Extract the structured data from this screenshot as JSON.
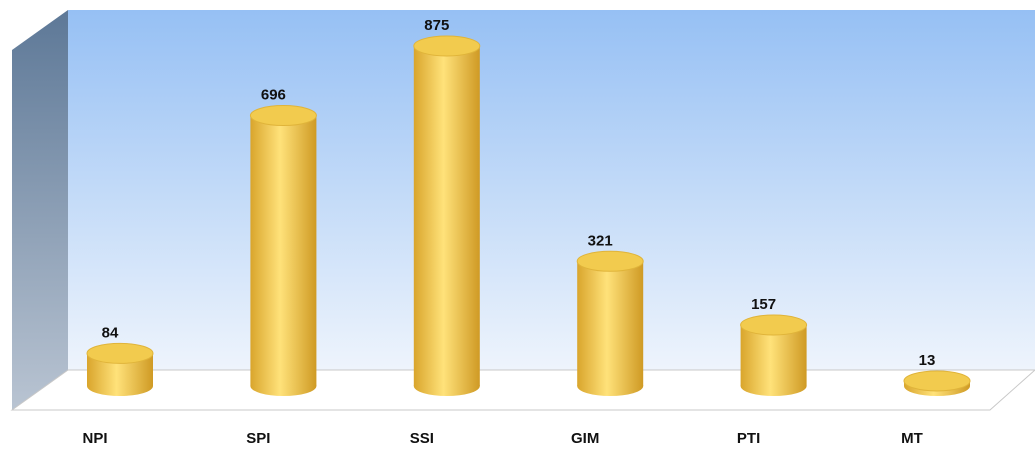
{
  "chart_data": {
    "type": "bar",
    "categories": [
      "NPI",
      "SPI",
      "SSI",
      "GIM",
      "PTI",
      "MT"
    ],
    "values": [
      84,
      696,
      875,
      321,
      157,
      13
    ],
    "color": "#ffe27a"
  }
}
